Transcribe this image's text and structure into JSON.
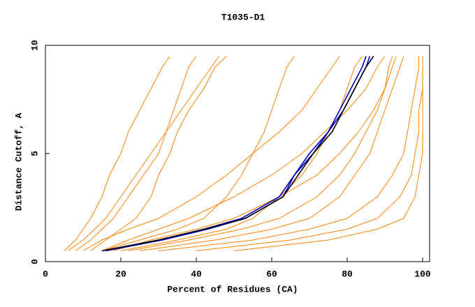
{
  "chart_data": {
    "type": "line",
    "title": "T1035-D1",
    "x_label": "Percent of Residues (CA)",
    "y_label": "Distance Cutoff, A",
    "xlim": [
      0,
      100
    ],
    "xticks": [
      0,
      20,
      40,
      60,
      80,
      100
    ],
    "ylim": [
      0,
      10
    ],
    "yticks": [
      0,
      5,
      10
    ],
    "series": [
      {
        "color": "#ff8000",
        "x": [
          5,
          8,
          10,
          12,
          15,
          17,
          20,
          22,
          25,
          28,
          31,
          33
        ],
        "values": [
          0.5,
          1,
          1.5,
          2,
          3,
          4,
          5,
          6,
          7,
          8,
          9,
          9.5
        ]
      },
      {
        "color": "#ff8000",
        "x": [
          8,
          12,
          15,
          18,
          22,
          26,
          30,
          32,
          34,
          36,
          38,
          40
        ],
        "values": [
          0.5,
          1,
          1.5,
          2,
          3,
          4,
          5,
          6,
          7,
          8,
          9,
          9.5
        ]
      },
      {
        "color": "#ff8000",
        "x": [
          12,
          16,
          20,
          24,
          28,
          30,
          33,
          35,
          38,
          42,
          45,
          48
        ],
        "values": [
          0.5,
          1,
          1.5,
          2,
          3,
          4,
          5,
          6,
          7,
          8,
          9,
          9.5
        ]
      },
      {
        "color": "#ff8000",
        "x": [
          15,
          25,
          35,
          42,
          48,
          52,
          55,
          58,
          60,
          62,
          64,
          66
        ],
        "values": [
          0.5,
          1,
          1.5,
          2,
          3,
          4,
          5,
          6,
          7,
          8,
          9,
          9.5
        ]
      },
      {
        "color": "#ff8000",
        "x": [
          20,
          35,
          48,
          55,
          62,
          68,
          72,
          75,
          78,
          80,
          82,
          84
        ],
        "values": [
          0.5,
          1,
          1.5,
          2,
          3,
          4,
          5,
          6,
          7,
          8,
          9,
          9.5
        ]
      },
      {
        "color": "#ff8000",
        "x": [
          25,
          45,
          60,
          70,
          78,
          82,
          86,
          88,
          90,
          92,
          94,
          95
        ],
        "values": [
          0.5,
          1,
          1.5,
          2,
          3,
          4,
          5,
          6,
          7,
          8,
          9,
          9.5
        ]
      },
      {
        "color": "#ff8000",
        "x": [
          30,
          55,
          70,
          80,
          88,
          92,
          95,
          96,
          97,
          98,
          99,
          99
        ],
        "values": [
          0.5,
          1,
          1.5,
          2,
          3,
          4,
          5,
          6,
          7,
          8,
          9,
          9.5
        ]
      },
      {
        "color": "#ff8000",
        "x": [
          40,
          65,
          80,
          88,
          94,
          97,
          98,
          99,
          99,
          100,
          100,
          100
        ],
        "values": [
          0.5,
          1,
          1.5,
          2,
          3,
          4,
          5,
          6,
          7,
          8,
          9,
          9.5
        ]
      },
      {
        "color": "#ff8000",
        "x": [
          50,
          75,
          88,
          95,
          98,
          99,
          100,
          100,
          100,
          100,
          100,
          100
        ],
        "values": [
          0.5,
          1,
          1.5,
          2,
          3,
          4,
          5,
          6,
          7,
          8,
          9,
          9.5
        ]
      },
      {
        "color": "#ff8000",
        "x": [
          10,
          15,
          22,
          30,
          40,
          48,
          55,
          62,
          68,
          72,
          76,
          78
        ],
        "values": [
          0.5,
          1,
          1.5,
          2,
          3,
          4,
          5,
          6,
          7,
          8,
          9,
          9.5
        ]
      },
      {
        "color": "#ff8000",
        "x": [
          15,
          22,
          30,
          38,
          50,
          60,
          68,
          74,
          80,
          85,
          88,
          90
        ],
        "values": [
          0.5,
          1,
          1.5,
          2,
          3,
          4,
          5,
          6,
          7,
          8,
          9,
          9.5
        ]
      },
      {
        "color": "#ff8000",
        "x": [
          18,
          28,
          40,
          50,
          62,
          72,
          78,
          83,
          87,
          90,
          92,
          93
        ],
        "values": [
          0.5,
          1,
          1.5,
          2,
          3,
          4,
          5,
          6,
          7,
          8,
          9,
          9.5
        ]
      },
      {
        "color": "#ff8000",
        "x": [
          6,
          10,
          13,
          16,
          20,
          24,
          28,
          32,
          36,
          40,
          44,
          46
        ],
        "values": [
          0.5,
          1,
          1.5,
          2,
          3,
          4,
          5,
          6,
          7,
          8,
          9,
          9.5
        ]
      },
      {
        "color": "#ff8000",
        "x": [
          22,
          38,
          52,
          62,
          72,
          78,
          82,
          85,
          88,
          90,
          91,
          92
        ],
        "values": [
          0.5,
          1,
          1.5,
          2,
          3,
          4,
          5,
          6,
          7,
          8,
          9,
          9.5
        ]
      },
      {
        "color": "#0000c0",
        "x": [
          15,
          30,
          42,
          52,
          62,
          66,
          70,
          75,
          78,
          81,
          84,
          85
        ],
        "values": [
          0.5,
          1,
          1.5,
          2,
          3,
          4,
          5,
          6,
          7,
          8,
          9,
          9.5
        ]
      },
      {
        "color": "#0000c0",
        "x": [
          16,
          31,
          43,
          53,
          63,
          66,
          71,
          75,
          79,
          82,
          85,
          86
        ],
        "values": [
          0.5,
          1,
          1.5,
          2,
          3,
          4,
          5,
          6,
          7,
          8,
          9,
          9.5
        ]
      },
      {
        "color": "#000000",
        "x": [
          15,
          30,
          42,
          53,
          63,
          67,
          71,
          76,
          79,
          82,
          85,
          87
        ],
        "values": [
          0.5,
          1,
          1.5,
          2,
          3,
          4,
          5,
          6,
          7,
          8,
          9,
          9.5
        ]
      }
    ]
  }
}
